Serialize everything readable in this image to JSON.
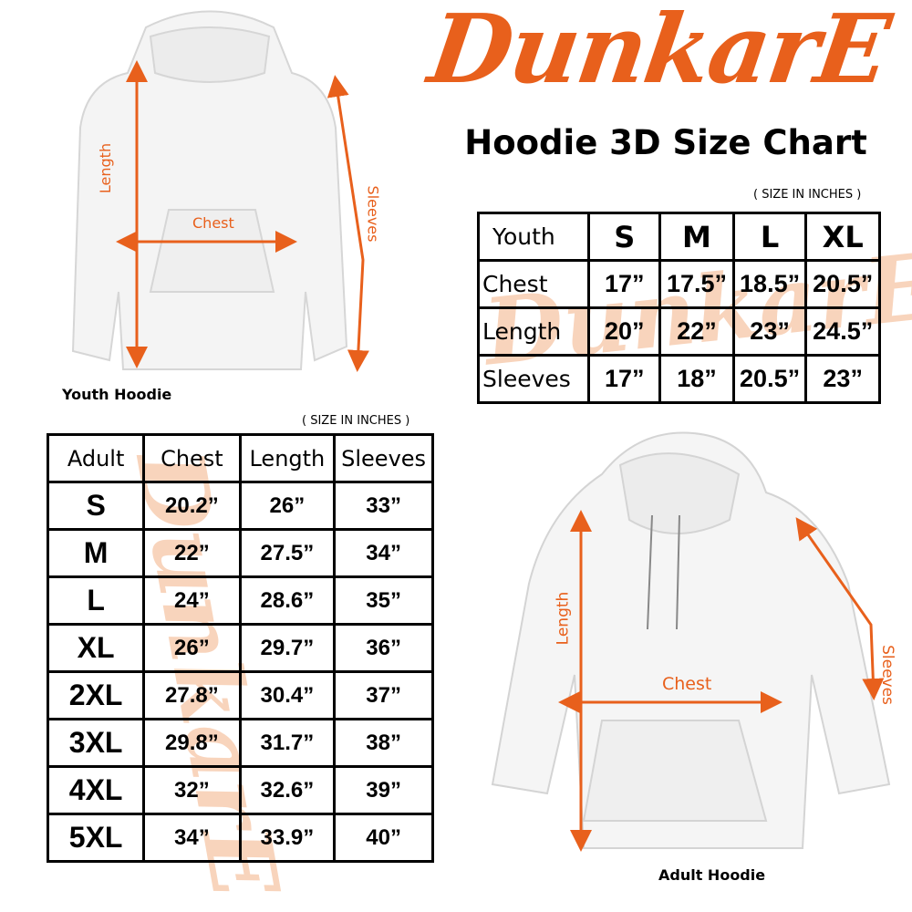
{
  "brand": {
    "logo_text": "DunkarE",
    "color": "#e8601c"
  },
  "title": "Hoodie 3D Size Chart",
  "youth": {
    "caption": "Youth Hoodie",
    "labels": {
      "length": "Length",
      "chest": "Chest",
      "sleeves": "Sleeves"
    },
    "unit_note": "( SIZE IN INCHES )",
    "table": {
      "header": [
        "Youth",
        "S",
        "M",
        "L",
        "XL"
      ],
      "rows": [
        [
          "Chest",
          "17”",
          "17.5”",
          "18.5”",
          "20.5”"
        ],
        [
          "Length",
          "20”",
          "22”",
          "23”",
          "24.5”"
        ],
        [
          "Sleeves",
          "17”",
          "18”",
          "20.5”",
          "23”"
        ]
      ]
    }
  },
  "adult": {
    "caption": "Adult Hoodie",
    "labels": {
      "length": "Length",
      "chest": "Chest",
      "sleeves": "Sleeves"
    },
    "unit_note": "( SIZE IN INCHES )",
    "table": {
      "header": [
        "Adult",
        "Chest",
        "Length",
        "Sleeves"
      ],
      "rows": [
        [
          "S",
          "20.2”",
          "26”",
          "33”"
        ],
        [
          "M",
          "22”",
          "27.5”",
          "34”"
        ],
        [
          "L",
          "24”",
          "28.6”",
          "35”"
        ],
        [
          "XL",
          "26”",
          "29.7”",
          "36”"
        ],
        [
          "2XL",
          "27.8”",
          "30.4”",
          "37”"
        ],
        [
          "3XL",
          "29.8”",
          "31.7”",
          "38”"
        ],
        [
          "4XL",
          "32”",
          "32.6”",
          "39”"
        ],
        [
          "5XL",
          "34”",
          "33.9”",
          "40”"
        ]
      ]
    }
  }
}
